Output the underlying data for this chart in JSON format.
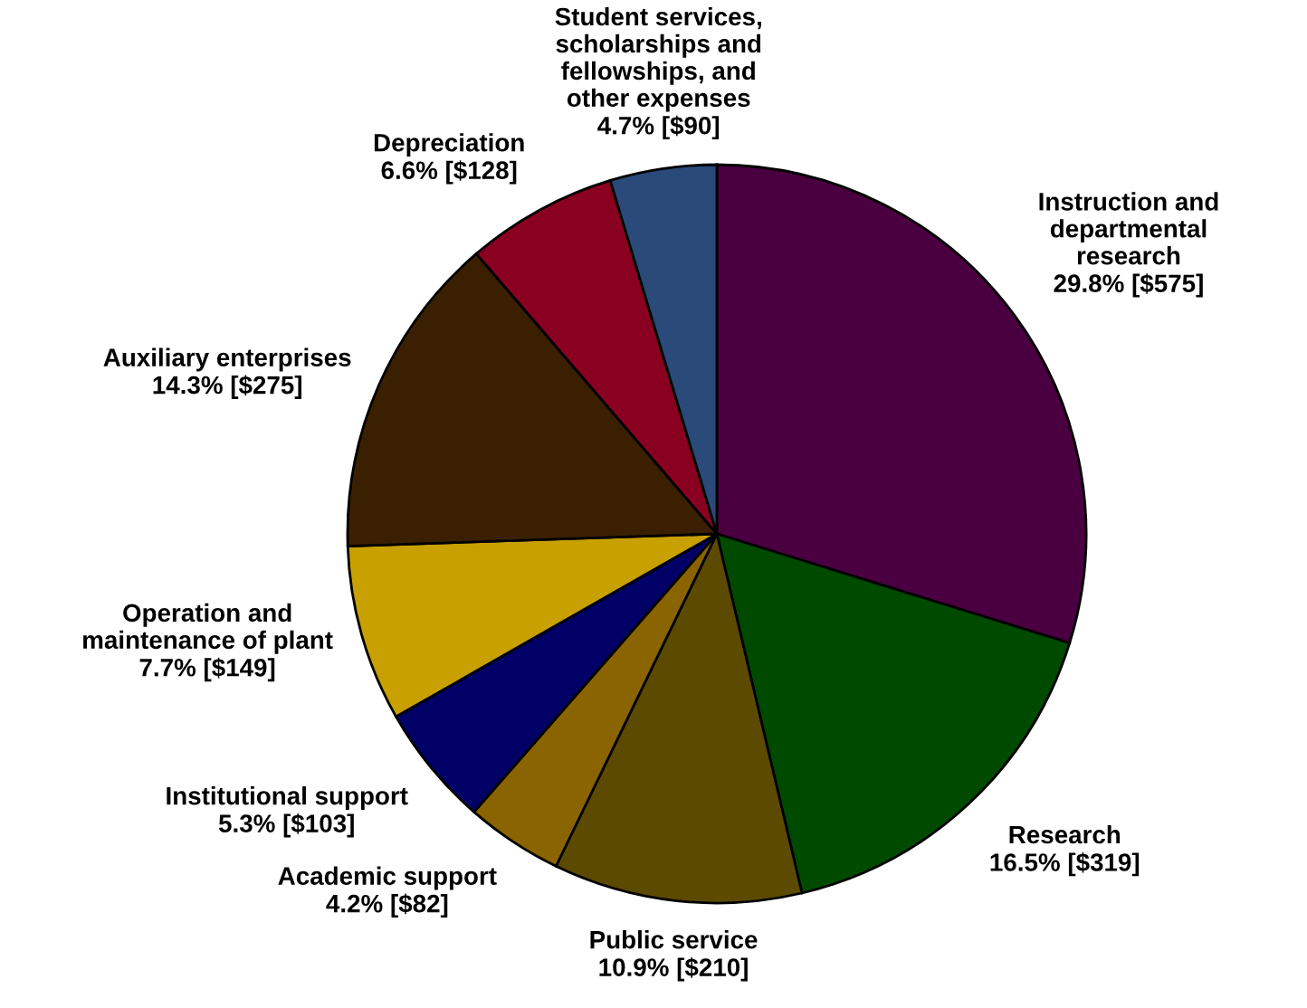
{
  "chart_data": {
    "type": "pie",
    "categories": [
      "Instruction and\ndepartmental\nresearch",
      "Research",
      "Public service",
      "Academic support",
      "Institutional support",
      "Operation and\nmaintenance of plant",
      "Auxiliary enterprises",
      "Depreciation",
      "Student services,\nscholarships and\nfellowships, and\nother expenses"
    ],
    "values": [
      575,
      319,
      210,
      82,
      103,
      149,
      275,
      128,
      90
    ],
    "value_labels": [
      "29.8% [$575]",
      "16.5% [$319]",
      "10.9% [$210]",
      "4.2% [$82]",
      "5.3% [$103]",
      "7.7% [$149]",
      "14.3% [$275]",
      "6.6% [$128]",
      "4.7% [$90]"
    ],
    "colors": [
      "#4a0040",
      "#004a00",
      "#5c4a00",
      "#8a6400",
      "#000066",
      "#c8a000",
      "#3a2000",
      "#8a0020",
      "#2a4a7a"
    ],
    "legend": false
  }
}
